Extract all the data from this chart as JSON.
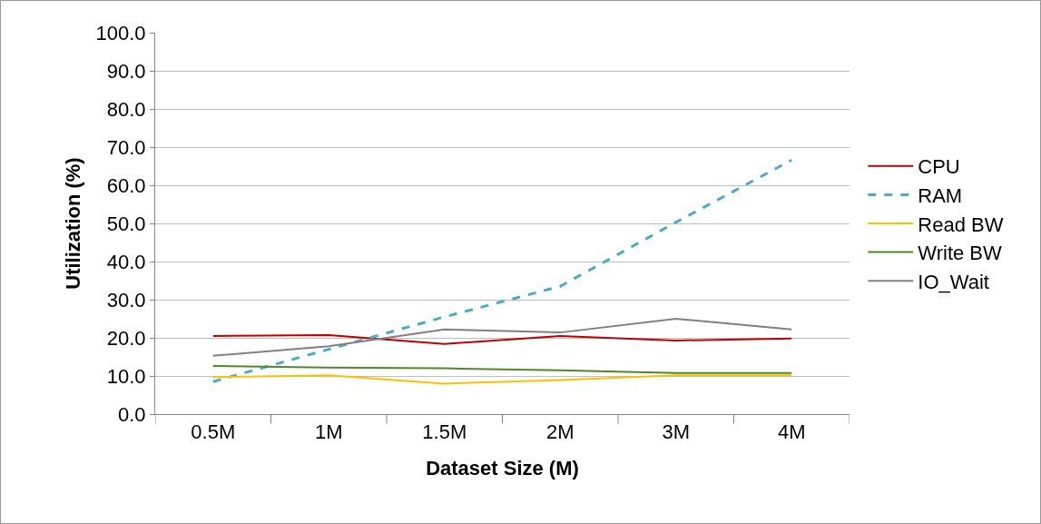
{
  "chart_data": {
    "type": "line",
    "xlabel": "Dataset Size (M)",
    "ylabel": "Utilization (%)",
    "categories": [
      "0.5M",
      "1M",
      "1.5M",
      "2M",
      "3M",
      "4M"
    ],
    "series": [
      {
        "name": "CPU",
        "color": "#c00000",
        "values": [
          20.5,
          20.7,
          18.4,
          20.5,
          19.3,
          19.8
        ]
      },
      {
        "name": "RAM",
        "color": "#4bacc6",
        "values": [
          8.5,
          17.0,
          25.5,
          33.5,
          50.3,
          66.6
        ],
        "line_style": "dashed"
      },
      {
        "name": "Read BW",
        "color": "#ffc000",
        "values": [
          9.7,
          10.2,
          8.0,
          8.9,
          10.2,
          10.2
        ]
      },
      {
        "name": "Write BW",
        "color": "#4f8a2a",
        "values": [
          12.6,
          12.2,
          12.0,
          11.5,
          10.8,
          10.8
        ]
      },
      {
        "name": "IO_Wait",
        "color": "#808080",
        "values": [
          15.3,
          17.8,
          22.2,
          21.4,
          25.0,
          22.2
        ]
      }
    ],
    "ylim": [
      0,
      100
    ],
    "yticks": [
      {
        "value": 0,
        "label": "0.0"
      },
      {
        "value": 10,
        "label": "10.0"
      },
      {
        "value": 20,
        "label": "20.0"
      },
      {
        "value": 30,
        "label": "30.0"
      },
      {
        "value": 40,
        "label": "40.0"
      },
      {
        "value": 50,
        "label": "50.0"
      },
      {
        "value": 60,
        "label": "60.0"
      },
      {
        "value": 70,
        "label": "70.0"
      },
      {
        "value": 80,
        "label": "80.0"
      },
      {
        "value": 90,
        "label": "90.0"
      },
      {
        "value": 100,
        "label": "100.0"
      }
    ],
    "grid": "y",
    "legend": "right",
    "marker": "none",
    "line_style": "solid"
  }
}
